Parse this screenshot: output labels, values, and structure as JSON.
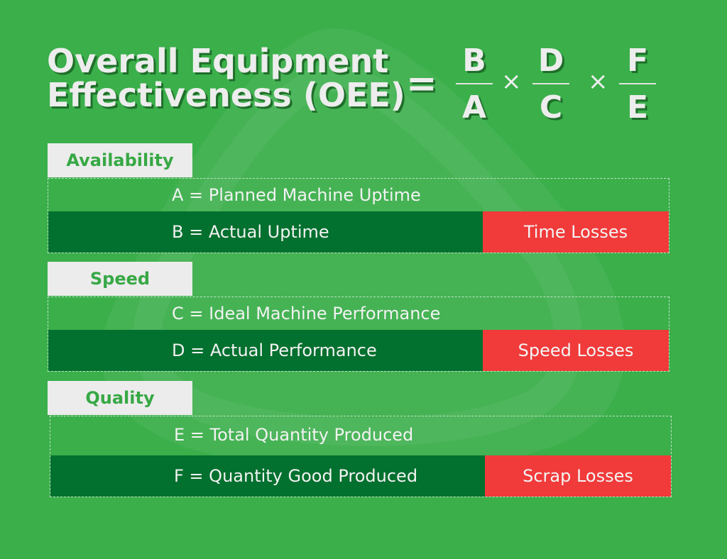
{
  "title_lines": [
    "Overall Equipment",
    "Effectiveness (OEE)"
  ],
  "equals": "=",
  "times": "×",
  "formula": [
    {
      "num": "B",
      "den": "A"
    },
    {
      "num": "D",
      "den": "C"
    },
    {
      "num": "F",
      "den": "E"
    }
  ],
  "sections": [
    {
      "label": "Availability",
      "top_row": "A = Planned Machine Uptime",
      "bottom_row": "B = Actual Uptime",
      "loss": "Time Losses"
    },
    {
      "label": "Speed",
      "top_row": "C = Ideal Machine Performance",
      "bottom_row": "D = Actual Performance",
      "loss": "Speed Losses"
    },
    {
      "label": "Quality",
      "top_row": "E = Total Quantity Produced",
      "bottom_row": "F = Quantity Good Produced",
      "loss": "Scrap Losses"
    }
  ],
  "colors": {
    "background": "#3aaf4a",
    "dark_row": "#02702e",
    "loss": "#f13a3a",
    "tab": "#ececec",
    "tab_text": "#37a845"
  }
}
